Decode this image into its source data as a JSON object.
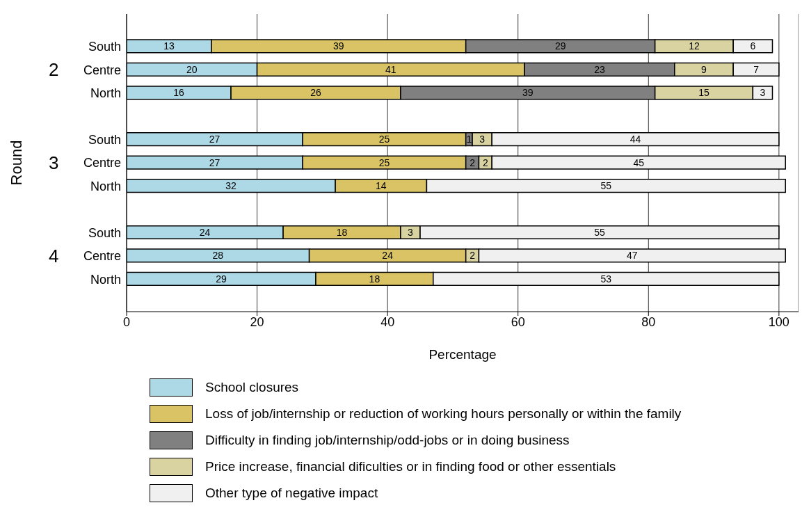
{
  "chart_data": {
    "type": "bar",
    "orientation": "horizontal",
    "stacked": true,
    "xlabel": "Percentage",
    "ylabel": "Round",
    "annotations": [
      "2",
      "3",
      "4"
    ],
    "categories": [
      "South",
      "Centre",
      "North",
      null,
      "South",
      "Centre",
      "North",
      null,
      "South",
      "Centre",
      "North"
    ],
    "series": [
      {
        "name": "School closures",
        "color": "#add8e6",
        "values": [
          13,
          20,
          16,
          null,
          27,
          27,
          32,
          null,
          24,
          28,
          29
        ],
        "value_labels": [
          "13",
          "20",
          "16",
          null,
          "27",
          "27",
          "32",
          null,
          "24",
          "28",
          "29"
        ]
      },
      {
        "name": "Loss of job/internship or reduction of working hours personally or within the family",
        "color": "#d9c364",
        "values": [
          39,
          41,
          26,
          null,
          25,
          25,
          14,
          null,
          18,
          24,
          18
        ],
        "value_labels": [
          "39",
          "41",
          "26",
          null,
          "25",
          "25",
          "14",
          null,
          "18",
          "24",
          "18"
        ]
      },
      {
        "name": "Difficulty in finding job/internship/odd-jobs or in doing business",
        "color": "#808080",
        "values": [
          29,
          23,
          39,
          null,
          1,
          2,
          0,
          null,
          0,
          0,
          0
        ],
        "value_labels": [
          "29",
          "23",
          "39",
          null,
          "1",
          "2",
          null,
          null,
          null,
          null,
          null
        ]
      },
      {
        "name": "Price increase, financial dificulties or in finding food or other essentials",
        "color": "#d8d3a1",
        "values": [
          12,
          9,
          15,
          null,
          3,
          2,
          0,
          null,
          3,
          2,
          0
        ],
        "value_labels": [
          "12",
          "9",
          "15",
          null,
          "3",
          "2",
          null,
          null,
          "3",
          "2",
          null
        ]
      },
      {
        "name": "Other type of negative impact",
        "color": "#f0f0f0",
        "values": [
          6,
          7,
          3,
          null,
          44,
          45,
          55,
          null,
          55,
          47,
          53
        ],
        "value_labels": [
          "6",
          "7",
          "3",
          null,
          "44",
          "45",
          "55",
          null,
          "55",
          "47",
          "53"
        ]
      }
    ],
    "xlim": [
      0,
      103
    ],
    "xticks": [
      0,
      20,
      40,
      60,
      80,
      100
    ],
    "grid": "x",
    "legend": "bottom"
  }
}
